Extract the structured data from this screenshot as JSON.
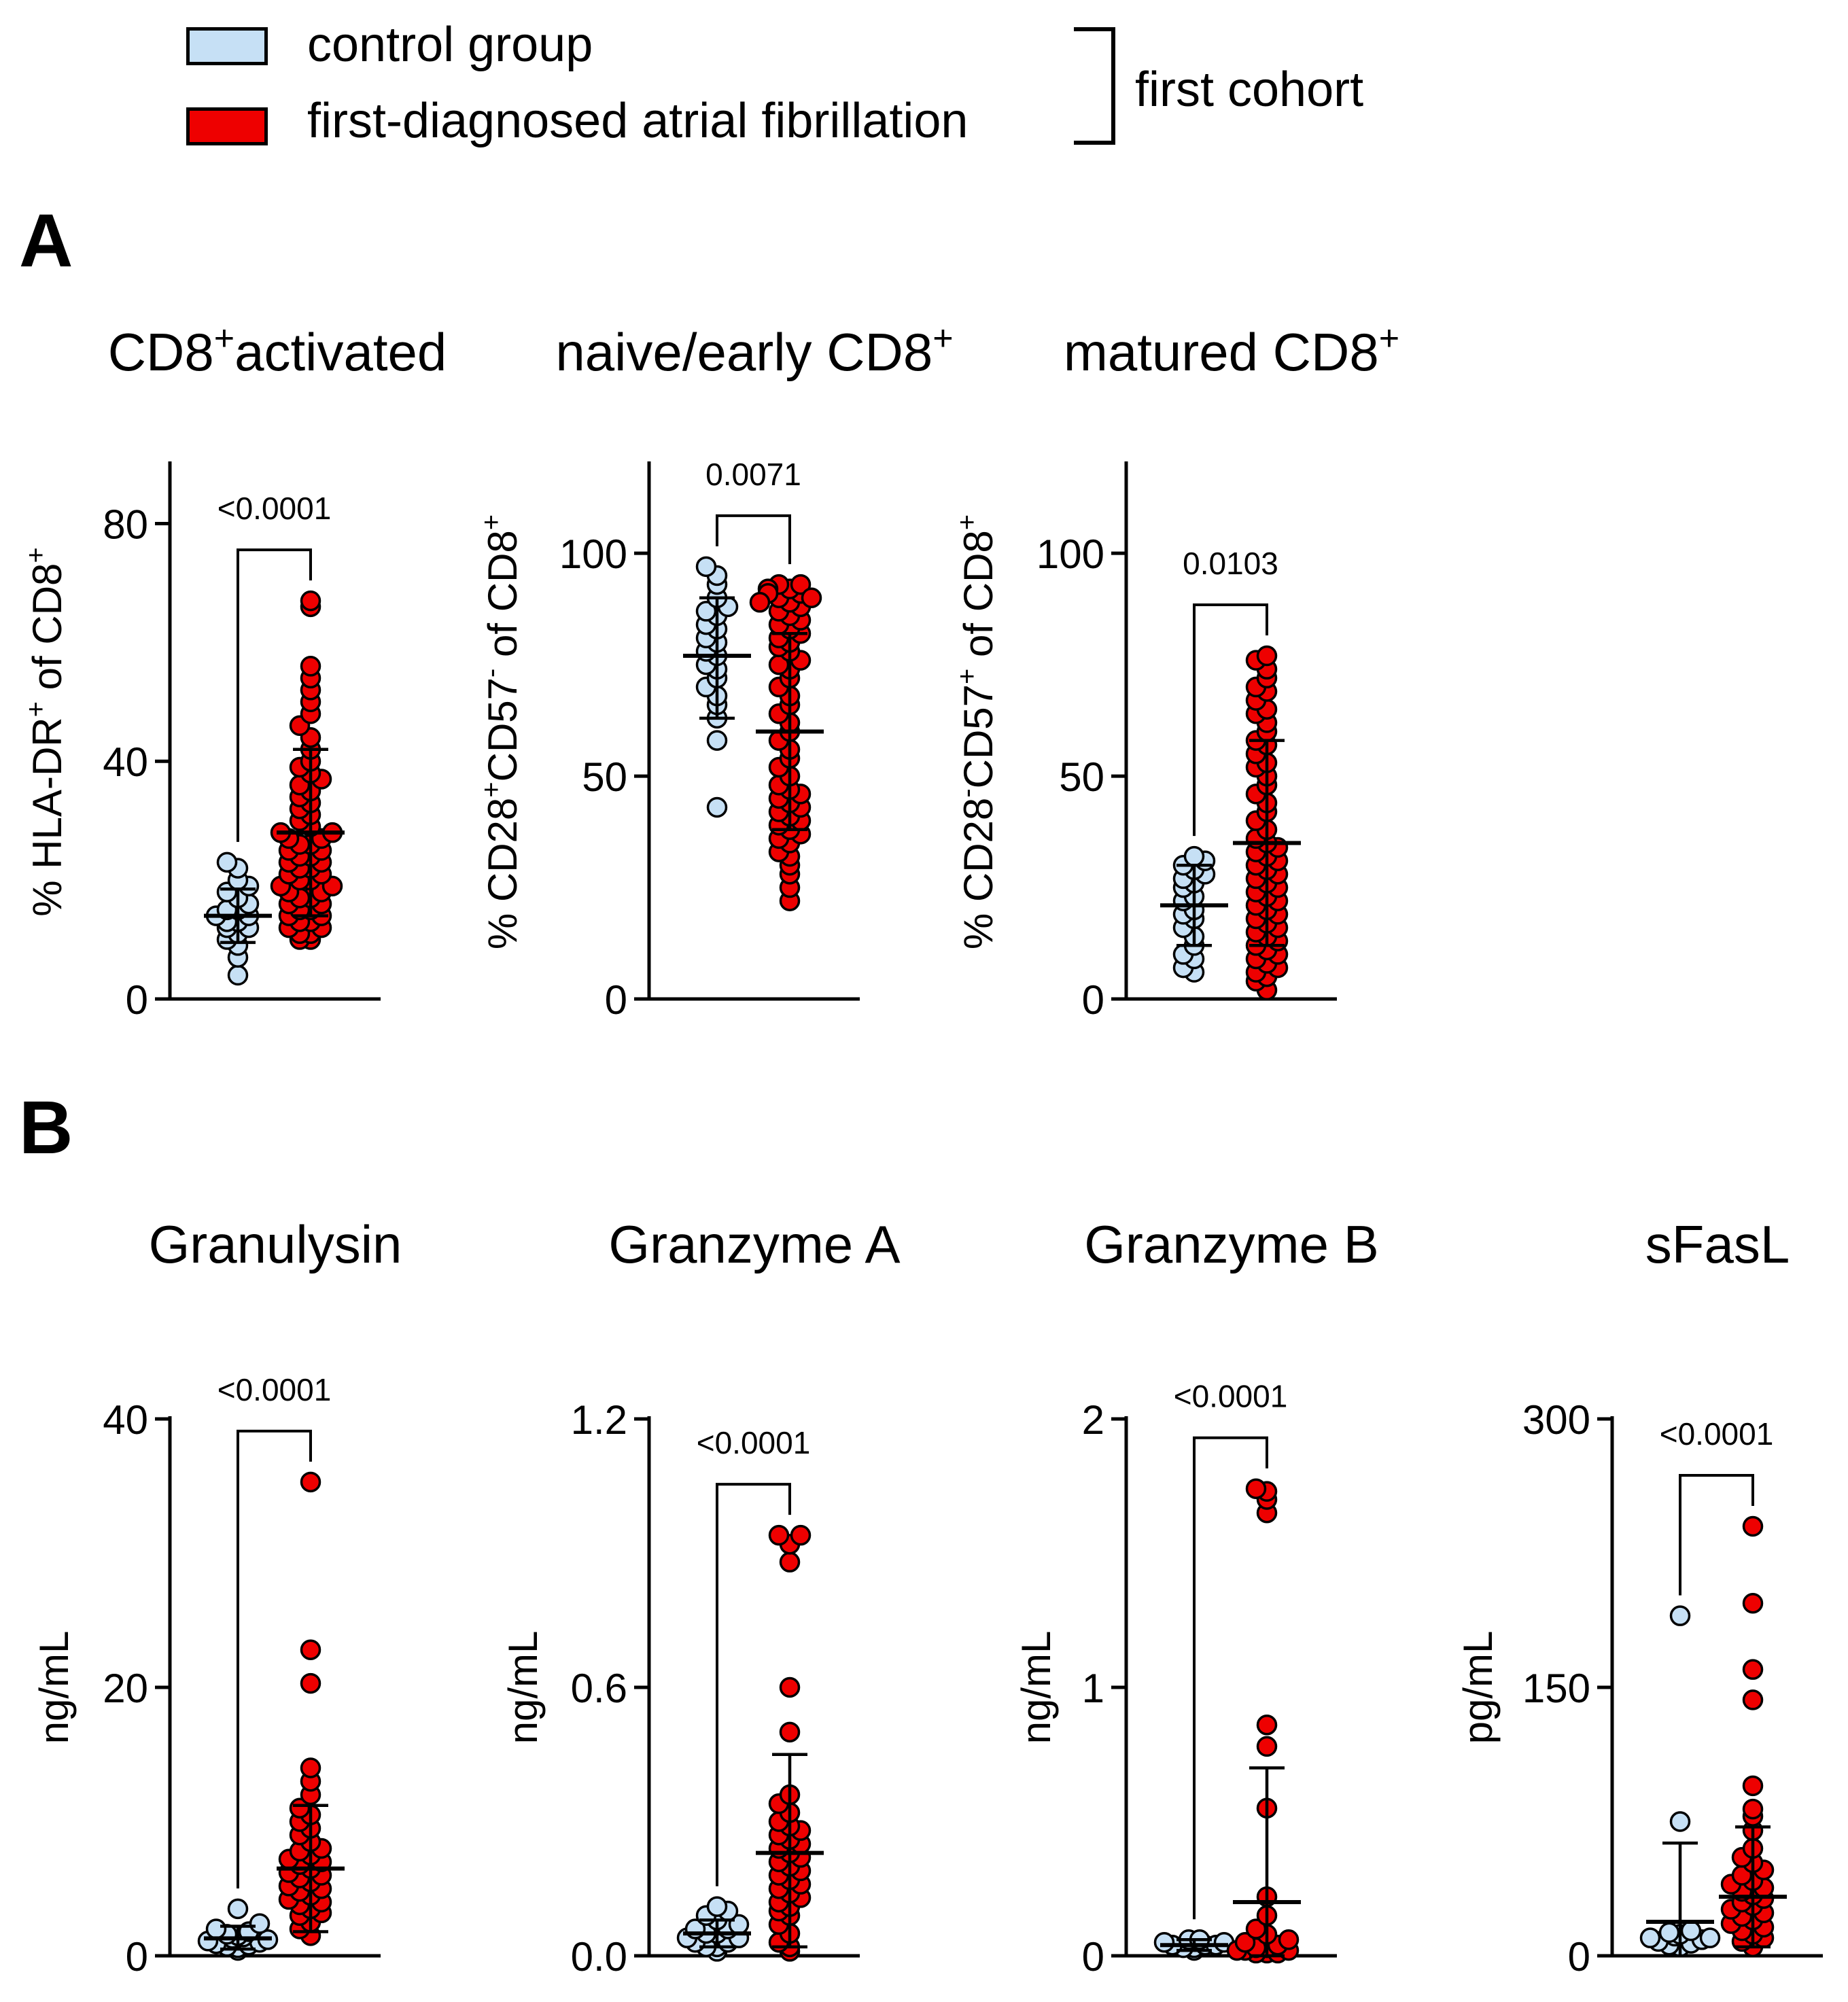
{
  "legend": {
    "items": [
      {
        "label": "control group",
        "color": "#c6e0f5"
      },
      {
        "label": "first-diagnosed atrial fibrillation",
        "color": "#ee0000"
      }
    ],
    "bracket_label": "first cohort"
  },
  "panels": {
    "A": "A",
    "B": "B"
  },
  "colors": {
    "control": "#c6e0f5",
    "af": "#ee0000",
    "stroke": "#000000"
  },
  "chart_data": [
    {
      "type": "scatter",
      "panel": "A",
      "title": {
        "text": "CD8",
        "sup": "+",
        "after": "activated"
      },
      "ylabel": [
        {
          "t": "% HLA-DR"
        },
        {
          "t": "+",
          "sup": true
        },
        {
          "t": " of CD8"
        },
        {
          "t": "+",
          "sup": true
        }
      ],
      "ylim": [
        0,
        90
      ],
      "yticks": [
        0,
        40,
        80
      ],
      "ytick_labels": [
        "0",
        "40",
        "80"
      ],
      "p_value": "<0.0001",
      "series": [
        {
          "name": "control group",
          "mean": 14,
          "sd_low": 9.5,
          "sd_high": 18.5,
          "values": [
            4,
            7,
            9,
            10,
            11,
            12,
            12,
            13,
            13,
            14,
            14,
            15,
            15,
            16,
            17,
            18,
            19,
            20,
            22,
            23
          ]
        },
        {
          "name": "first-diagnosed atrial fibrillation",
          "mean": 28,
          "sd_low": 14,
          "sd_high": 42,
          "values": [
            10,
            10,
            11,
            11,
            12,
            12,
            13,
            13,
            14,
            14,
            15,
            15,
            16,
            16,
            17,
            17,
            18,
            18,
            19,
            19,
            20,
            20,
            21,
            21,
            22,
            22,
            23,
            23,
            24,
            24,
            25,
            25,
            26,
            26,
            27,
            27,
            28,
            28,
            29,
            30,
            31,
            32,
            33,
            34,
            35,
            36,
            37,
            38,
            39,
            40,
            42,
            44,
            46,
            48,
            50,
            52,
            54,
            56,
            66,
            67
          ]
        }
      ]
    },
    {
      "type": "scatter",
      "panel": "A",
      "title": {
        "text": "naive/early CD8",
        "sup": "+",
        "after": ""
      },
      "ylabel": [
        {
          "t": "% CD28"
        },
        {
          "t": "+",
          "sup": true
        },
        {
          "t": "CD57"
        },
        {
          "t": "-",
          "sup": true
        },
        {
          "t": " of CD8"
        },
        {
          "t": "+",
          "sup": true
        }
      ],
      "ylim": [
        0,
        120
      ],
      "yticks": [
        0,
        50,
        100
      ],
      "ytick_labels": [
        "0",
        "50",
        "100"
      ],
      "p_value": "0.0071",
      "series": [
        {
          "name": "control group",
          "mean": 77,
          "sd_low": 63,
          "sd_high": 90,
          "values": [
            43,
            58,
            63,
            66,
            68,
            70,
            72,
            74,
            75,
            77,
            78,
            80,
            81,
            83,
            84,
            86,
            87,
            88,
            90,
            93,
            95,
            97
          ]
        },
        {
          "name": "first-diagnosed atrial fibrillation",
          "mean": 60,
          "sd_low": 38,
          "sd_high": 82,
          "values": [
            22,
            25,
            28,
            30,
            32,
            33,
            35,
            36,
            37,
            38,
            39,
            40,
            41,
            42,
            43,
            44,
            45,
            46,
            47,
            48,
            50,
            52,
            54,
            56,
            58,
            60,
            62,
            64,
            66,
            68,
            70,
            72,
            74,
            75,
            76,
            78,
            79,
            80,
            81,
            82,
            83,
            84,
            85,
            86,
            87,
            88,
            89,
            90,
            91,
            92,
            93,
            93,
            92,
            91,
            90,
            89
          ]
        }
      ]
    },
    {
      "type": "scatter",
      "panel": "A",
      "title": {
        "text": "matured CD8",
        "sup": "+",
        "after": ""
      },
      "ylabel": [
        {
          "t": "% CD28"
        },
        {
          "t": "-",
          "sup": true
        },
        {
          "t": "CD57"
        },
        {
          "t": "+",
          "sup": true
        },
        {
          "t": " of CD8"
        },
        {
          "t": "+",
          "sup": true
        }
      ],
      "ylim": [
        0,
        120
      ],
      "yticks": [
        0,
        50,
        100
      ],
      "ytick_labels": [
        "0",
        "50",
        "100"
      ],
      "p_value": "0.0103",
      "series": [
        {
          "name": "control group",
          "mean": 21,
          "sd_low": 12,
          "sd_high": 30,
          "values": [
            6,
            7,
            9,
            10,
            12,
            14,
            16,
            18,
            19,
            20,
            22,
            23,
            25,
            26,
            27,
            28,
            29,
            30,
            31,
            32
          ]
        },
        {
          "name": "first-diagnosed atrial fibrillation",
          "mean": 35,
          "sd_low": 12,
          "sd_high": 58,
          "values": [
            2,
            4,
            5,
            6,
            7,
            8,
            9,
            10,
            11,
            12,
            13,
            14,
            15,
            16,
            17,
            18,
            19,
            20,
            21,
            22,
            23,
            24,
            25,
            26,
            27,
            28,
            29,
            30,
            31,
            32,
            33,
            34,
            35,
            36,
            38,
            40,
            42,
            44,
            46,
            48,
            50,
            52,
            53,
            55,
            57,
            58,
            60,
            62,
            64,
            65,
            67,
            69,
            70,
            72,
            74,
            76,
            77
          ]
        }
      ]
    },
    {
      "type": "scatter",
      "panel": "B",
      "title": {
        "text": "Granulysin",
        "sup": "",
        "after": ""
      },
      "ylabel": [
        {
          "t": "ng/mL"
        }
      ],
      "ylim": [
        0,
        40
      ],
      "yticks": [
        0,
        20,
        40
      ],
      "ytick_labels": [
        "0",
        "20",
        "40"
      ],
      "p_value": "<0.0001",
      "series": [
        {
          "name": "control group",
          "mean": 1.3,
          "sd_low": 0.5,
          "sd_high": 2.2,
          "values": [
            0.4,
            0.6,
            0.7,
            0.8,
            0.9,
            1.0,
            1.1,
            1.2,
            1.3,
            1.4,
            1.5,
            1.6,
            1.8,
            2.0,
            2.4,
            3.5
          ]
        },
        {
          "name": "first-diagnosed atrial fibrillation",
          "mean": 6.5,
          "sd_low": 1.8,
          "sd_high": 11.2,
          "values": [
            1.5,
            2.0,
            2.5,
            3.0,
            3.2,
            3.5,
            3.8,
            4.0,
            4.2,
            4.5,
            4.8,
            5.0,
            5.2,
            5.5,
            5.8,
            6.0,
            6.2,
            6.5,
            6.8,
            7.0,
            7.2,
            7.5,
            7.8,
            8.0,
            8.5,
            9.0,
            9.5,
            10.0,
            10.5,
            11.0,
            12.0,
            13.0,
            14.0,
            20.3,
            22.8,
            35.3
          ]
        }
      ]
    },
    {
      "type": "scatter",
      "panel": "B",
      "title": {
        "text": "Granzyme A",
        "sup": "",
        "after": ""
      },
      "ylabel": [
        {
          "t": "ng/mL"
        }
      ],
      "ylim": [
        0,
        1.2
      ],
      "yticks": [
        0,
        0.6,
        1.2
      ],
      "ytick_labels": [
        "0.0",
        "0.6",
        "1.2"
      ],
      "p_value": "<0.0001",
      "series": [
        {
          "name": "control group",
          "mean": 0.05,
          "sd_low": 0.02,
          "sd_high": 0.08,
          "values": [
            0.01,
            0.02,
            0.02,
            0.03,
            0.03,
            0.04,
            0.04,
            0.05,
            0.05,
            0.06,
            0.06,
            0.07,
            0.08,
            0.09,
            0.1,
            0.11
          ]
        },
        {
          "name": "first-diagnosed atrial fibrillation",
          "mean": 0.23,
          "sd_low": 0.02,
          "sd_high": 0.45,
          "values": [
            0.01,
            0.02,
            0.03,
            0.05,
            0.07,
            0.09,
            0.1,
            0.11,
            0.12,
            0.13,
            0.14,
            0.15,
            0.16,
            0.17,
            0.18,
            0.19,
            0.2,
            0.21,
            0.22,
            0.23,
            0.24,
            0.25,
            0.26,
            0.27,
            0.28,
            0.29,
            0.3,
            0.32,
            0.34,
            0.36,
            0.5,
            0.6,
            0.88,
            0.92,
            0.94,
            0.94
          ]
        }
      ]
    },
    {
      "type": "scatter",
      "panel": "B",
      "title": {
        "text": "Granzyme B",
        "sup": "",
        "after": ""
      },
      "ylabel": [
        {
          "t": "ng/mL"
        }
      ],
      "ylim": [
        0,
        2
      ],
      "yticks": [
        0,
        1,
        2
      ],
      "ytick_labels": [
        "0",
        "1",
        "2"
      ],
      "p_value": "<0.0001",
      "series": [
        {
          "name": "control group",
          "mean": 0.04,
          "sd_low": 0.02,
          "sd_high": 0.06,
          "values": [
            0.02,
            0.03,
            0.03,
            0.04,
            0.04,
            0.04,
            0.05,
            0.05,
            0.06,
            0.06
          ]
        },
        {
          "name": "first-diagnosed atrial fibrillation",
          "mean": 0.2,
          "sd_low": 0.0,
          "sd_high": 0.7,
          "values": [
            0.01,
            0.01,
            0.01,
            0.02,
            0.02,
            0.02,
            0.03,
            0.03,
            0.04,
            0.05,
            0.06,
            0.08,
            0.1,
            0.15,
            0.22,
            0.55,
            0.78,
            0.86,
            1.65,
            1.7,
            1.73,
            1.74
          ]
        }
      ]
    },
    {
      "type": "scatter",
      "panel": "B",
      "title": {
        "text": "sFasL",
        "sup": "",
        "after": ""
      },
      "ylabel": [
        {
          "t": "pg/mL"
        }
      ],
      "ylim": [
        0,
        300
      ],
      "yticks": [
        0,
        150,
        300
      ],
      "ytick_labels": [
        "0",
        "150",
        "300"
      ],
      "p_value": "<0.0001",
      "series": [
        {
          "name": "control group",
          "mean": 19,
          "sd_low": 0,
          "sd_high": 63,
          "values": [
            5,
            6,
            7,
            8,
            9,
            10,
            10,
            11,
            12,
            13,
            14,
            75,
            190
          ]
        },
        {
          "name": "first-diagnosed atrial fibrillation",
          "mean": 33,
          "sd_low": 5,
          "sd_high": 72,
          "values": [
            5,
            8,
            10,
            12,
            14,
            16,
            18,
            20,
            22,
            24,
            26,
            28,
            30,
            32,
            34,
            36,
            38,
            40,
            42,
            45,
            48,
            52,
            55,
            60,
            70,
            78,
            82,
            95,
            143,
            160,
            197,
            240
          ]
        }
      ]
    }
  ]
}
